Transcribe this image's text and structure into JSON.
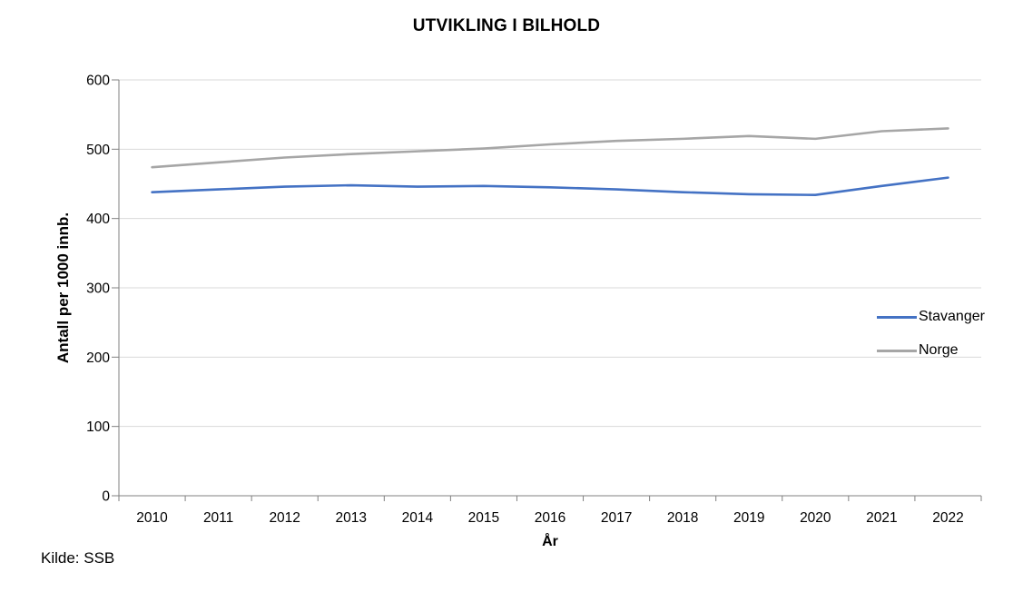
{
  "page": {
    "background": "#FFFFFF"
  },
  "chart_data": {
    "type": "line",
    "title": "UTVIKLING I BILHOLD",
    "xlabel": "År",
    "ylabel": "Antall per 1000 innb.",
    "source": "Kilde: SSB",
    "categories": [
      "2010",
      "2011",
      "2012",
      "2013",
      "2014",
      "2015",
      "2016",
      "2017",
      "2018",
      "2019",
      "2020",
      "2021",
      "2022"
    ],
    "series": [
      {
        "name": "Stavanger",
        "color": "#4472C4",
        "values": [
          438,
          442,
          446,
          448,
          446,
          447,
          445,
          442,
          438,
          435,
          434,
          447,
          459
        ]
      },
      {
        "name": "Norge",
        "color": "#A6A6A6",
        "values": [
          474,
          481,
          488,
          493,
          497,
          501,
          507,
          512,
          515,
          519,
          515,
          526,
          530
        ]
      }
    ],
    "ylim": [
      0,
      600
    ],
    "ytick_step": 100,
    "grid": true,
    "legend_position": "right-inside",
    "colors": {
      "gridline": "#D9D9D9",
      "axis": "#808080",
      "text": "#000000"
    }
  }
}
